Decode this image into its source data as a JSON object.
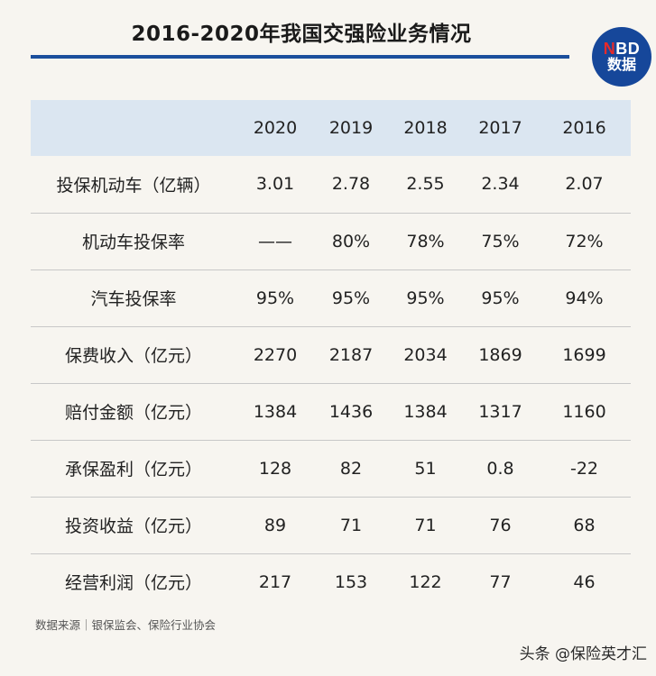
{
  "title": "2016-2020年我国交强险业务情况",
  "logo": {
    "line1_red": "N",
    "line1_rest": "BD",
    "line2": "数据",
    "color": "#16479a",
    "accent": "#e62a2a"
  },
  "table": {
    "headers": [
      "",
      "2020",
      "2019",
      "2018",
      "2017",
      "2016"
    ],
    "rows": [
      {
        "label": "投保机动车（亿辆）",
        "values": [
          "3.01",
          "2.78",
          "2.55",
          "2.34",
          "2.07"
        ]
      },
      {
        "label": "机动车投保率",
        "values": [
          "——",
          "80%",
          "78%",
          "75%",
          "72%"
        ]
      },
      {
        "label": "汽车投保率",
        "values": [
          "95%",
          "95%",
          "95%",
          "95%",
          "94%"
        ]
      },
      {
        "label": "保费收入（亿元）",
        "values": [
          "2270",
          "2187",
          "2034",
          "1869",
          "1699"
        ]
      },
      {
        "label": "赔付金额（亿元）",
        "values": [
          "1384",
          "1436",
          "1384",
          "1317",
          "1160"
        ]
      },
      {
        "label": "承保盈利（亿元）",
        "values": [
          "128",
          "82",
          "51",
          "0.8",
          "-22"
        ]
      },
      {
        "label": "投资收益（亿元）",
        "values": [
          "89",
          "71",
          "71",
          "76",
          "68"
        ]
      },
      {
        "label": "经营利润（亿元）",
        "values": [
          "217",
          "153",
          "122",
          "77",
          "46"
        ]
      }
    ]
  },
  "source": "数据来源｜银保监会、保险行业协会",
  "watermark": "头条 @保险英才汇",
  "colors": {
    "header_bg": "#dbe6f1",
    "title_rule": "#1b4f9c",
    "page_bg": "#f7f5f0"
  }
}
